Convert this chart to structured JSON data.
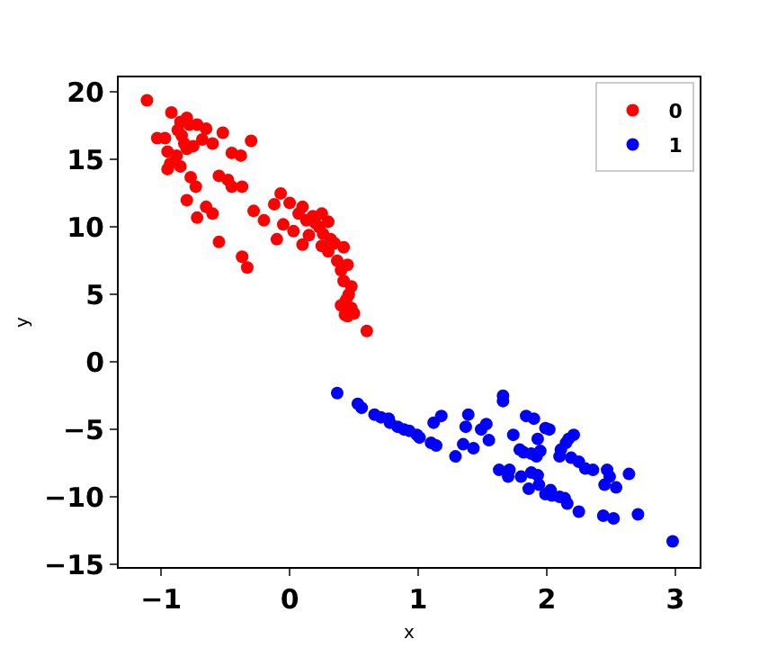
{
  "chart_data": {
    "type": "scatter",
    "xlabel": "x",
    "ylabel": "y",
    "xlim": [
      -1.33,
      3.19
    ],
    "ylim": [
      -15.2,
      21.1
    ],
    "xticks": [
      -1,
      0,
      1,
      2,
      3
    ],
    "yticks": [
      -15,
      -10,
      -5,
      0,
      5,
      10,
      15,
      20
    ],
    "grid": false,
    "legend": "top right",
    "marker": "circle",
    "series": [
      {
        "name": "0",
        "color": "#ff0000",
        "x": [
          -1.11,
          -1.03,
          -0.97,
          -0.92,
          -0.85,
          -0.8,
          -0.87,
          -0.78,
          -0.72,
          -0.68,
          -0.84,
          -0.82,
          -0.95,
          -0.93,
          -0.88,
          -0.8,
          -0.75,
          -0.65,
          -0.52,
          -0.6,
          -0.45,
          -0.38,
          -0.3,
          -0.95,
          -0.85,
          -0.77,
          -0.73,
          -0.8,
          -0.65,
          -0.6,
          -0.72,
          -0.55,
          -0.48,
          -0.45,
          -0.37,
          -0.55,
          -0.37,
          -0.33,
          -0.28,
          -0.2,
          -0.1,
          -0.12,
          -0.07,
          -0.05,
          0.0,
          0.03,
          0.07,
          0.1,
          0.13,
          0.1,
          0.18,
          0.2,
          0.15,
          0.25,
          0.23,
          0.26,
          0.3,
          0.32,
          0.35,
          0.25,
          0.3,
          0.42,
          0.37,
          0.4,
          0.45,
          0.42,
          0.48,
          0.46,
          0.44,
          0.4,
          0.48,
          0.43,
          0.5,
          0.45,
          0.6
        ],
        "values": [
          19.4,
          16.6,
          16.6,
          18.5,
          17.8,
          18.1,
          17.2,
          17.6,
          17.6,
          16.5,
          16.8,
          16.2,
          15.6,
          14.7,
          15.3,
          15.8,
          16.0,
          17.3,
          17.0,
          16.2,
          15.5,
          15.3,
          16.4,
          14.3,
          14.5,
          13.7,
          13.0,
          12.0,
          11.5,
          11.0,
          10.7,
          13.8,
          13.5,
          13.0,
          13.0,
          8.9,
          7.8,
          7.0,
          11.2,
          10.5,
          9.1,
          11.7,
          12.5,
          10.2,
          11.8,
          9.7,
          11.0,
          11.5,
          10.5,
          8.7,
          10.8,
          10.3,
          9.4,
          11.0,
          10.0,
          9.5,
          10.4,
          9.1,
          8.8,
          8.6,
          8.2,
          8.5,
          7.5,
          6.8,
          7.2,
          6.0,
          5.6,
          5.0,
          4.6,
          4.2,
          4.0,
          3.5,
          3.6,
          3.4,
          2.3
        ]
      },
      {
        "name": "1",
        "color": "#0000ff",
        "x": [
          0.37,
          0.53,
          0.56,
          0.66,
          0.71,
          0.77,
          0.78,
          0.84,
          0.89,
          0.93,
          0.99,
          1.01,
          1.1,
          1.14,
          1.18,
          1.12,
          1.29,
          1.35,
          1.39,
          1.37,
          1.43,
          1.49,
          1.53,
          1.55,
          1.66,
          1.66,
          1.84,
          1.9,
          1.74,
          1.93,
          1.99,
          2.02,
          1.79,
          1.82,
          1.88,
          1.92,
          1.95,
          2.11,
          2.15,
          2.17,
          2.21,
          2.1,
          2.19,
          2.25,
          2.3,
          2.36,
          2.47,
          2.49,
          2.64,
          2.45,
          2.54,
          1.63,
          1.7,
          1.71,
          1.8,
          1.88,
          1.93,
          1.86,
          1.94,
          1.99,
          2.03,
          2.04,
          2.1,
          2.14,
          2.16,
          2.25,
          2.44,
          2.52,
          2.71,
          2.98
        ],
        "values": [
          -2.3,
          -3.1,
          -3.4,
          -3.9,
          -4.1,
          -4.2,
          -4.5,
          -4.8,
          -5.0,
          -5.1,
          -5.4,
          -5.6,
          -6.0,
          -6.2,
          -4.0,
          -4.5,
          -7.0,
          -6.1,
          -3.9,
          -4.8,
          -6.4,
          -5.0,
          -4.6,
          -5.8,
          -2.5,
          -2.9,
          -4.0,
          -4.2,
          -5.4,
          -5.7,
          -4.9,
          -5.0,
          -6.5,
          -6.7,
          -6.8,
          -7.0,
          -6.6,
          -6.5,
          -6.0,
          -5.7,
          -5.4,
          -7.0,
          -7.1,
          -7.4,
          -7.9,
          -8.0,
          -8.0,
          -8.5,
          -8.3,
          -9.1,
          -9.3,
          -8.0,
          -8.5,
          -8.0,
          -8.5,
          -8.2,
          -8.4,
          -9.4,
          -9.1,
          -9.8,
          -9.5,
          -9.9,
          -10.0,
          -10.1,
          -10.5,
          -11.1,
          -11.4,
          -11.6,
          -11.3,
          -13.3
        ]
      }
    ]
  }
}
